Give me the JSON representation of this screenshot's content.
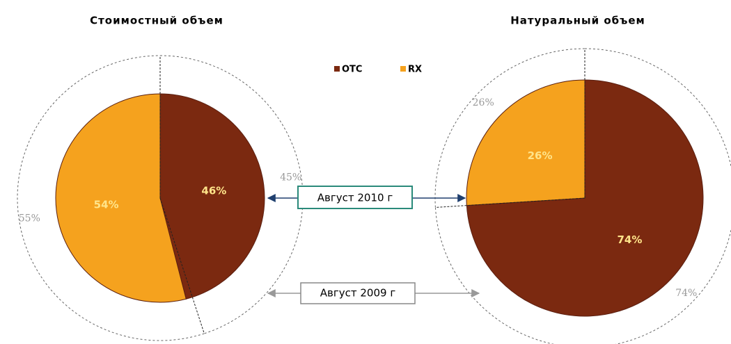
{
  "legend": {
    "categories": [
      "OTC",
      "RX"
    ],
    "colors": [
      "#7b2910",
      "#f5a21e"
    ]
  },
  "annotations": [
    "Август 2010 г",
    "Август 2009 г"
  ],
  "chart_data": [
    {
      "type": "pie",
      "title": "Стоимостный объем",
      "values": [
        46,
        54
      ],
      "value_labels": [
        "46%",
        "54%"
      ],
      "outer_values": [
        45,
        55
      ],
      "outer_value_labels": [
        "45%",
        "55%"
      ]
    },
    {
      "type": "pie",
      "title": "Натуральный объем",
      "values": [
        74,
        26
      ],
      "value_labels": [
        "74%",
        "26%"
      ],
      "outer_values": [
        74,
        26
      ],
      "outer_value_labels": [
        "74%",
        "26%"
      ]
    }
  ]
}
